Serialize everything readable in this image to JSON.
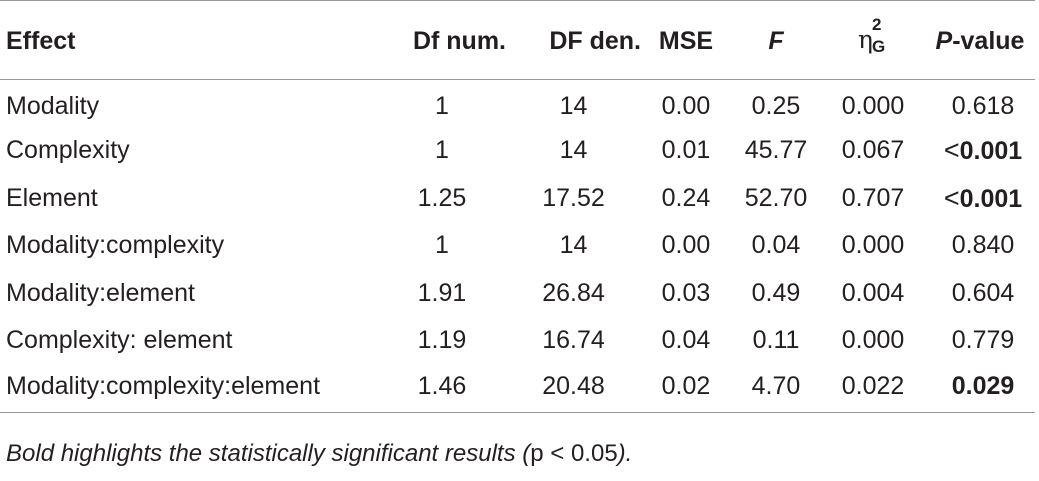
{
  "table": {
    "headers": {
      "effect": "Effect",
      "df_num": "Df num.",
      "df_den": "DF den.",
      "mse": "MSE",
      "f": "F",
      "eta_symbol": "η",
      "eta_sup": "2",
      "eta_sub": "G",
      "p_value_italic": "P",
      "p_value_rest": "-value"
    },
    "rows": [
      {
        "effect": "Modality",
        "df_num": "1",
        "df_den": "14",
        "mse": "0.00",
        "f": "0.25",
        "eta": "0.000",
        "p_prefix": "",
        "p": "0.618",
        "bold": false
      },
      {
        "effect": "Complexity",
        "df_num": "1",
        "df_den": "14",
        "mse": "0.01",
        "f": "45.77",
        "eta": "0.067",
        "p_prefix": "<",
        "p": "0.001",
        "bold": true
      },
      {
        "effect": "Element",
        "df_num": "1.25",
        "df_den": "17.52",
        "mse": "0.24",
        "f": "52.70",
        "eta": "0.707",
        "p_prefix": "<",
        "p": "0.001",
        "bold": true
      },
      {
        "effect": "Modality:complexity",
        "df_num": "1",
        "df_den": "14",
        "mse": "0.00",
        "f": "0.04",
        "eta": "0.000",
        "p_prefix": "",
        "p": "0.840",
        "bold": false
      },
      {
        "effect": "Modality:element",
        "df_num": "1.91",
        "df_den": "26.84",
        "mse": "0.03",
        "f": "0.49",
        "eta": "0.004",
        "p_prefix": "",
        "p": "0.604",
        "bold": false
      },
      {
        "effect": "Complexity: element",
        "df_num": "1.19",
        "df_den": "16.74",
        "mse": "0.04",
        "f": "0.11",
        "eta": "0.000",
        "p_prefix": "",
        "p": "0.779",
        "bold": false
      },
      {
        "effect": "Modality:complexity:element",
        "df_num": "1.46",
        "df_den": "20.48",
        "mse": "0.02",
        "f": "4.70",
        "eta": "0.022",
        "p_prefix": "",
        "p": "0.029",
        "bold": true
      }
    ]
  },
  "footnote": {
    "text_before": "Bold highlights the statistically significant results (",
    "condition": "p < 0.05",
    "text_after": ")."
  }
}
